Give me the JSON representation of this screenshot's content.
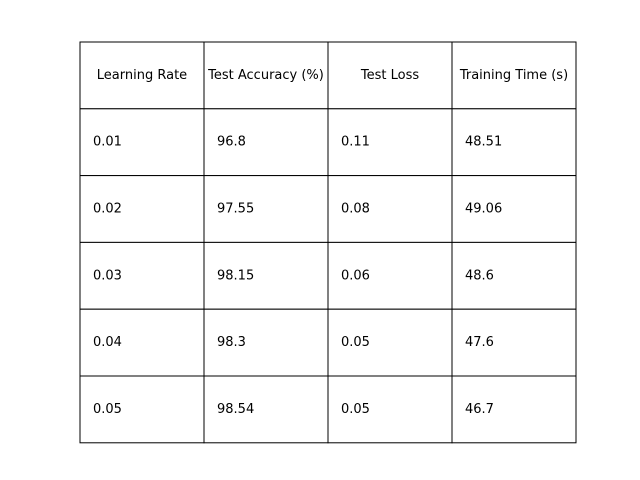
{
  "chart_data": {
    "type": "table",
    "columns": [
      "Learning Rate",
      "Test Accuracy (%)",
      "Test Loss",
      "Training Time (s)"
    ],
    "rows": [
      [
        "0.01",
        "96.8",
        "0.11",
        "48.51"
      ],
      [
        "0.02",
        "97.55",
        "0.08",
        "49.06"
      ],
      [
        "0.03",
        "98.15",
        "0.06",
        "48.6"
      ],
      [
        "0.04",
        "98.3",
        "0.05",
        "47.6"
      ],
      [
        "0.05",
        "98.54",
        "0.05",
        "46.7"
      ]
    ]
  }
}
